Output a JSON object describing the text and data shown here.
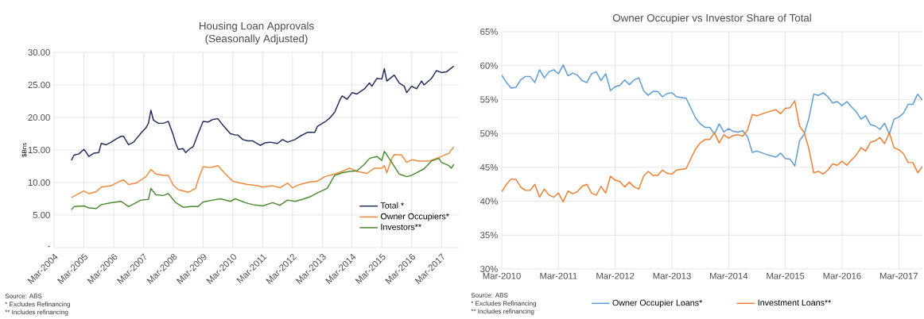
{
  "chart_data": [
    {
      "type": "line",
      "title": "Housing Loan Approvals",
      "subtitle": "(Seasonally Adjusted)",
      "ylabel": "$Bns",
      "xlim": [
        "2004-03",
        "2017-10"
      ],
      "ylim": [
        0,
        30
      ],
      "xticks": [
        {
          "value": "2004-03",
          "label": "Mar-2004"
        },
        {
          "value": "2005-03",
          "label": "Mar-2005"
        },
        {
          "value": "2006-03",
          "label": "Mar-2006"
        },
        {
          "value": "2007-03",
          "label": "Mar-2007"
        },
        {
          "value": "2008-03",
          "label": "Mar-2008"
        },
        {
          "value": "2009-03",
          "label": "Mar-2009"
        },
        {
          "value": "2010-03",
          "label": "Mar-2010"
        },
        {
          "value": "2011-03",
          "label": "Mar-2011"
        },
        {
          "value": "2012-03",
          "label": "Mar-2012"
        },
        {
          "value": "2013-03",
          "label": "Mar-2013"
        },
        {
          "value": "2014-03",
          "label": "Mar-2014"
        },
        {
          "value": "2015-03",
          "label": "Mar-2015"
        },
        {
          "value": "2016-03",
          "label": "Mar-2016"
        },
        {
          "value": "2017-03",
          "label": "Mar-2017"
        }
      ],
      "yticks": [
        {
          "value": 0,
          "label": "-"
        },
        {
          "value": 5,
          "label": "5.00"
        },
        {
          "value": 10,
          "label": "10.00"
        },
        {
          "value": 15,
          "label": "15.00"
        },
        {
          "value": 20,
          "label": "20.00"
        },
        {
          "value": 25,
          "label": "25.00"
        },
        {
          "value": 30,
          "label": "30.00"
        }
      ],
      "grid": true,
      "legend": "bottom right",
      "annotations": [
        "Source: ABS",
        "* Excludes Refinancing",
        "** Includes refinancing"
      ],
      "series": [
        {
          "name": "Total *",
          "color": "#1f2d5a",
          "x": [
            "2004-10",
            "2004-11",
            "2005-01",
            "2005-03",
            "2005-04",
            "2005-05",
            "2005-07",
            "2005-09",
            "2005-10",
            "2005-12",
            "2006-02",
            "2006-04",
            "2006-06",
            "2006-07",
            "2006-09",
            "2006-11",
            "2007-02",
            "2007-04",
            "2007-05",
            "2007-06",
            "2007-07",
            "2007-09",
            "2007-11",
            "2008-01",
            "2008-03",
            "2008-04",
            "2008-05",
            "2008-07",
            "2008-08",
            "2008-10",
            "2008-11",
            "2009-01",
            "2009-03",
            "2009-05",
            "2009-07",
            "2009-09",
            "2009-11",
            "2010-02",
            "2010-04",
            "2010-05",
            "2010-07",
            "2010-09",
            "2010-11",
            "2011-02",
            "2011-04",
            "2011-06",
            "2011-09",
            "2011-11",
            "2012-01",
            "2012-04",
            "2012-06",
            "2012-09",
            "2012-12",
            "2013-01",
            "2013-04",
            "2013-06",
            "2013-08",
            "2013-10",
            "2013-11",
            "2014-01",
            "2014-03",
            "2014-05",
            "2014-08",
            "2014-10",
            "2014-11",
            "2015-01",
            "2015-03",
            "2015-04",
            "2015-05",
            "2015-08",
            "2015-10",
            "2015-12",
            "2016-01",
            "2016-03",
            "2016-05",
            "2016-07",
            "2016-08",
            "2016-11",
            "2017-01",
            "2017-03",
            "2017-05",
            "2017-07",
            "2017-08"
          ],
          "values": [
            13.4,
            14.2,
            14.4,
            15.1,
            14.6,
            14.0,
            14.5,
            14.6,
            16.0,
            15.8,
            16.2,
            16.7,
            17.1,
            17.1,
            15.8,
            16.2,
            17.6,
            18.4,
            19.1,
            21.1,
            19.6,
            19.1,
            19.1,
            19.4,
            17.3,
            16.0,
            15.1,
            15.2,
            14.6,
            15.3,
            15.5,
            17.5,
            19.4,
            19.3,
            19.7,
            19.8,
            18.8,
            17.5,
            17.3,
            17.3,
            16.6,
            16.4,
            16.4,
            15.7,
            16.1,
            16.2,
            16.0,
            16.6,
            16.2,
            16.6,
            17.1,
            17.7,
            17.7,
            18.6,
            19.3,
            19.9,
            20.8,
            22.6,
            23.3,
            22.8,
            23.8,
            23.6,
            24.4,
            25.3,
            24.8,
            26.0,
            25.9,
            27.5,
            25.6,
            26.5,
            25.3,
            24.8,
            23.8,
            24.8,
            24.4,
            25.6,
            25.0,
            26.0,
            27.2,
            26.9,
            27.0,
            27.6,
            27.9
          ]
        },
        {
          "name": "Owner Occupiers*",
          "color": "#f0883a",
          "x": [
            "2004-10",
            "2005-03",
            "2005-05",
            "2005-08",
            "2005-10",
            "2006-02",
            "2006-05",
            "2006-07",
            "2006-09",
            "2006-12",
            "2007-04",
            "2007-06",
            "2007-08",
            "2007-11",
            "2008-01",
            "2008-03",
            "2008-05",
            "2008-09",
            "2008-12",
            "2009-01",
            "2009-03",
            "2009-06",
            "2009-09",
            "2009-12",
            "2010-03",
            "2010-06",
            "2010-09",
            "2011-01",
            "2011-03",
            "2011-07",
            "2011-10",
            "2012-01",
            "2012-03",
            "2012-06",
            "2012-10",
            "2013-01",
            "2013-04",
            "2013-08",
            "2013-11",
            "2014-02",
            "2014-05",
            "2014-09",
            "2014-12",
            "2015-03",
            "2015-04",
            "2015-05",
            "2015-07",
            "2015-08",
            "2015-11",
            "2016-01",
            "2016-03",
            "2016-06",
            "2016-10",
            "2017-01",
            "2017-03",
            "2017-06",
            "2017-08"
          ],
          "values": [
            7.7,
            8.7,
            8.3,
            8.6,
            9.3,
            9.5,
            10.1,
            10.4,
            9.7,
            9.9,
            10.9,
            12.0,
            11.3,
            11.1,
            11.1,
            9.6,
            8.9,
            8.5,
            9.1,
            10.4,
            12.4,
            12.3,
            12.6,
            11.3,
            10.2,
            9.9,
            9.7,
            9.5,
            9.3,
            9.5,
            9.2,
            9.9,
            9.2,
            9.7,
            10.1,
            10.2,
            10.9,
            11.3,
            11.7,
            12.2,
            11.7,
            11.4,
            12.2,
            12.2,
            12.6,
            11.5,
            13.7,
            14.3,
            14.2,
            13.1,
            13.5,
            13.3,
            13.3,
            13.7,
            14.0,
            14.5,
            15.5
          ]
        },
        {
          "name": "Investors**",
          "color": "#4a8a2c",
          "x": [
            "2004-10",
            "2004-11",
            "2005-03",
            "2005-05",
            "2005-08",
            "2005-10",
            "2006-02",
            "2006-06",
            "2006-09",
            "2007-02",
            "2007-05",
            "2007-06",
            "2007-08",
            "2007-11",
            "2008-01",
            "2008-04",
            "2008-07",
            "2008-10",
            "2009-01",
            "2009-03",
            "2009-07",
            "2009-10",
            "2010-02",
            "2010-04",
            "2010-08",
            "2010-11",
            "2011-03",
            "2011-07",
            "2011-10",
            "2012-01",
            "2012-04",
            "2012-07",
            "2012-10",
            "2013-01",
            "2013-05",
            "2013-08",
            "2013-11",
            "2014-02",
            "2014-05",
            "2014-08",
            "2014-10",
            "2015-01",
            "2015-03",
            "2015-04",
            "2015-07",
            "2015-10",
            "2016-01",
            "2016-03",
            "2016-05",
            "2016-08",
            "2016-11",
            "2017-02",
            "2017-03",
            "2017-06",
            "2017-07",
            "2017-08"
          ],
          "values": [
            5.8,
            6.3,
            6.4,
            6.1,
            6.0,
            6.6,
            6.9,
            7.1,
            6.3,
            7.3,
            7.4,
            9.1,
            8.1,
            8.0,
            8.3,
            6.9,
            6.2,
            6.3,
            6.3,
            7.0,
            7.3,
            7.5,
            7.1,
            7.5,
            6.9,
            6.6,
            6.4,
            6.9,
            6.5,
            7.3,
            7.1,
            7.4,
            7.8,
            8.4,
            9.1,
            11.1,
            11.5,
            11.7,
            11.8,
            12.8,
            13.7,
            14.0,
            13.4,
            14.8,
            13.1,
            11.3,
            10.9,
            11.1,
            11.5,
            12.1,
            13.3,
            13.7,
            13.1,
            12.6,
            12.2,
            12.8
          ]
        }
      ]
    },
    {
      "type": "line",
      "title": "Owner Occupier vs Investor Share of Total",
      "xlim": [
        "2010-03",
        "2017-08"
      ],
      "ylim": [
        30,
        65
      ],
      "xticks": [
        {
          "value": "2010-03",
          "label": "Mar-2010"
        },
        {
          "value": "2011-03",
          "label": "Mar-2011"
        },
        {
          "value": "2012-03",
          "label": "Mar-2012"
        },
        {
          "value": "2013-03",
          "label": "Mar-2013"
        },
        {
          "value": "2014-03",
          "label": "Mar-2014"
        },
        {
          "value": "2015-03",
          "label": "Mar-2015"
        },
        {
          "value": "2016-03",
          "label": "Mar-2016"
        },
        {
          "value": "2017-03",
          "label": "Mar-2017"
        }
      ],
      "yticks": [
        {
          "value": 30,
          "label": "30%"
        },
        {
          "value": 35,
          "label": "35%"
        },
        {
          "value": 40,
          "label": "40%"
        },
        {
          "value": 45,
          "label": "45%"
        },
        {
          "value": 50,
          "label": "50%"
        },
        {
          "value": 55,
          "label": "55%"
        },
        {
          "value": 60,
          "label": "60%"
        },
        {
          "value": 65,
          "label": "65%"
        }
      ],
      "grid": true,
      "legend": "bottom",
      "annotations": [
        "Source: ABS",
        "* Excludes Refinancing",
        "** Includes refinancing"
      ],
      "series": [
        {
          "name": "Owner Occupier Loans*",
          "color": "#5b9bd5",
          "x": [
            "2010-03",
            "2010-04",
            "2010-05",
            "2010-06",
            "2010-07",
            "2010-08",
            "2010-09",
            "2010-10",
            "2010-11",
            "2010-12",
            "2011-01",
            "2011-02",
            "2011-03",
            "2011-04",
            "2011-05",
            "2011-06",
            "2011-07",
            "2011-08",
            "2011-09",
            "2011-10",
            "2011-11",
            "2011-12",
            "2012-01",
            "2012-02",
            "2012-03",
            "2012-04",
            "2012-05",
            "2012-06",
            "2012-07",
            "2012-08",
            "2012-09",
            "2012-10",
            "2012-11",
            "2012-12",
            "2013-01",
            "2013-02",
            "2013-03",
            "2013-04",
            "2013-06",
            "2013-08",
            "2013-09",
            "2013-10",
            "2013-11",
            "2013-12",
            "2014-01",
            "2014-02",
            "2014-03",
            "2014-04",
            "2014-05",
            "2014-06",
            "2014-07",
            "2014-08",
            "2014-09",
            "2014-11",
            "2015-01",
            "2015-02",
            "2015-03",
            "2015-04",
            "2015-05",
            "2015-06",
            "2015-07",
            "2015-08",
            "2015-09",
            "2015-10",
            "2015-11",
            "2015-12",
            "2016-01",
            "2016-02",
            "2016-03",
            "2016-04",
            "2016-05",
            "2016-06",
            "2016-07",
            "2016-08",
            "2016-09",
            "2016-10",
            "2016-11",
            "2016-12",
            "2017-01",
            "2017-02",
            "2017-03",
            "2017-04",
            "2017-05",
            "2017-06",
            "2017-07",
            "2017-08"
          ],
          "values": [
            58.6,
            57.5,
            56.7,
            56.8,
            57.9,
            58.4,
            58.4,
            57.5,
            59.4,
            58.2,
            59.1,
            59.4,
            58.8,
            60.1,
            58.5,
            58.9,
            58.6,
            57.8,
            57.5,
            58.8,
            59.1,
            57.8,
            58.8,
            56.3,
            56.9,
            57.1,
            57.9,
            57.2,
            57.9,
            58.2,
            56.3,
            55.6,
            56.2,
            56.2,
            55.4,
            55.9,
            56.0,
            55.4,
            55.2,
            52.3,
            51.4,
            50.9,
            50.9,
            49.9,
            51.4,
            50.2,
            50.7,
            50.3,
            50.2,
            50.4,
            49.5,
            47.2,
            47.4,
            46.9,
            46.5,
            47.1,
            46.3,
            46.2,
            45.2,
            48.9,
            49.9,
            52.3,
            55.8,
            55.6,
            56.0,
            55.4,
            54.5,
            54.7,
            54.1,
            54.7,
            53.9,
            53.2,
            52.1,
            52.6,
            51.3,
            51.1,
            50.6,
            51.5,
            49.9,
            52.1,
            52.4,
            53.0,
            54.3,
            54.3,
            55.8,
            54.9
          ]
        },
        {
          "name": "Investment Loans**",
          "color": "#ed7d31",
          "x": [
            "2010-03",
            "2010-04",
            "2010-05",
            "2010-06",
            "2010-07",
            "2010-08",
            "2010-09",
            "2010-10",
            "2010-11",
            "2010-12",
            "2011-01",
            "2011-02",
            "2011-03",
            "2011-04",
            "2011-05",
            "2011-06",
            "2011-07",
            "2011-08",
            "2011-09",
            "2011-10",
            "2011-11",
            "2011-12",
            "2012-01",
            "2012-02",
            "2012-03",
            "2012-04",
            "2012-05",
            "2012-06",
            "2012-07",
            "2012-08",
            "2012-09",
            "2012-10",
            "2012-11",
            "2012-12",
            "2013-01",
            "2013-02",
            "2013-03",
            "2013-04",
            "2013-06",
            "2013-08",
            "2013-09",
            "2013-10",
            "2013-11",
            "2013-12",
            "2014-01",
            "2014-02",
            "2014-03",
            "2014-04",
            "2014-05",
            "2014-06",
            "2014-07",
            "2014-08",
            "2014-09",
            "2014-11",
            "2015-01",
            "2015-02",
            "2015-03",
            "2015-04",
            "2015-05",
            "2015-06",
            "2015-07",
            "2015-08",
            "2015-09",
            "2015-10",
            "2015-11",
            "2015-12",
            "2016-01",
            "2016-02",
            "2016-03",
            "2016-04",
            "2016-05",
            "2016-06",
            "2016-07",
            "2016-08",
            "2016-09",
            "2016-10",
            "2016-11",
            "2016-12",
            "2017-01",
            "2017-02",
            "2017-03",
            "2017-04",
            "2017-05",
            "2017-06",
            "2017-07",
            "2017-08"
          ],
          "values": [
            41.4,
            42.5,
            43.3,
            43.2,
            42.1,
            41.6,
            41.6,
            42.5,
            40.6,
            41.8,
            40.9,
            40.6,
            41.2,
            39.9,
            41.5,
            41.1,
            41.4,
            42.2,
            42.5,
            41.2,
            40.9,
            42.2,
            41.2,
            43.7,
            43.1,
            42.9,
            42.1,
            42.8,
            42.1,
            41.8,
            43.7,
            44.4,
            43.8,
            43.8,
            44.6,
            44.1,
            44.0,
            44.6,
            44.8,
            47.7,
            48.6,
            49.1,
            49.1,
            50.1,
            48.6,
            49.8,
            49.3,
            49.7,
            49.8,
            49.6,
            50.5,
            52.8,
            52.6,
            53.1,
            53.5,
            52.9,
            53.7,
            53.8,
            54.8,
            51.1,
            50.1,
            47.7,
            44.2,
            44.4,
            44.0,
            44.6,
            45.5,
            45.3,
            45.9,
            45.3,
            46.1,
            46.8,
            47.9,
            47.4,
            48.7,
            48.9,
            49.4,
            48.5,
            50.1,
            47.9,
            47.6,
            47.0,
            45.7,
            45.7,
            44.2,
            45.1
          ]
        }
      ]
    }
  ]
}
